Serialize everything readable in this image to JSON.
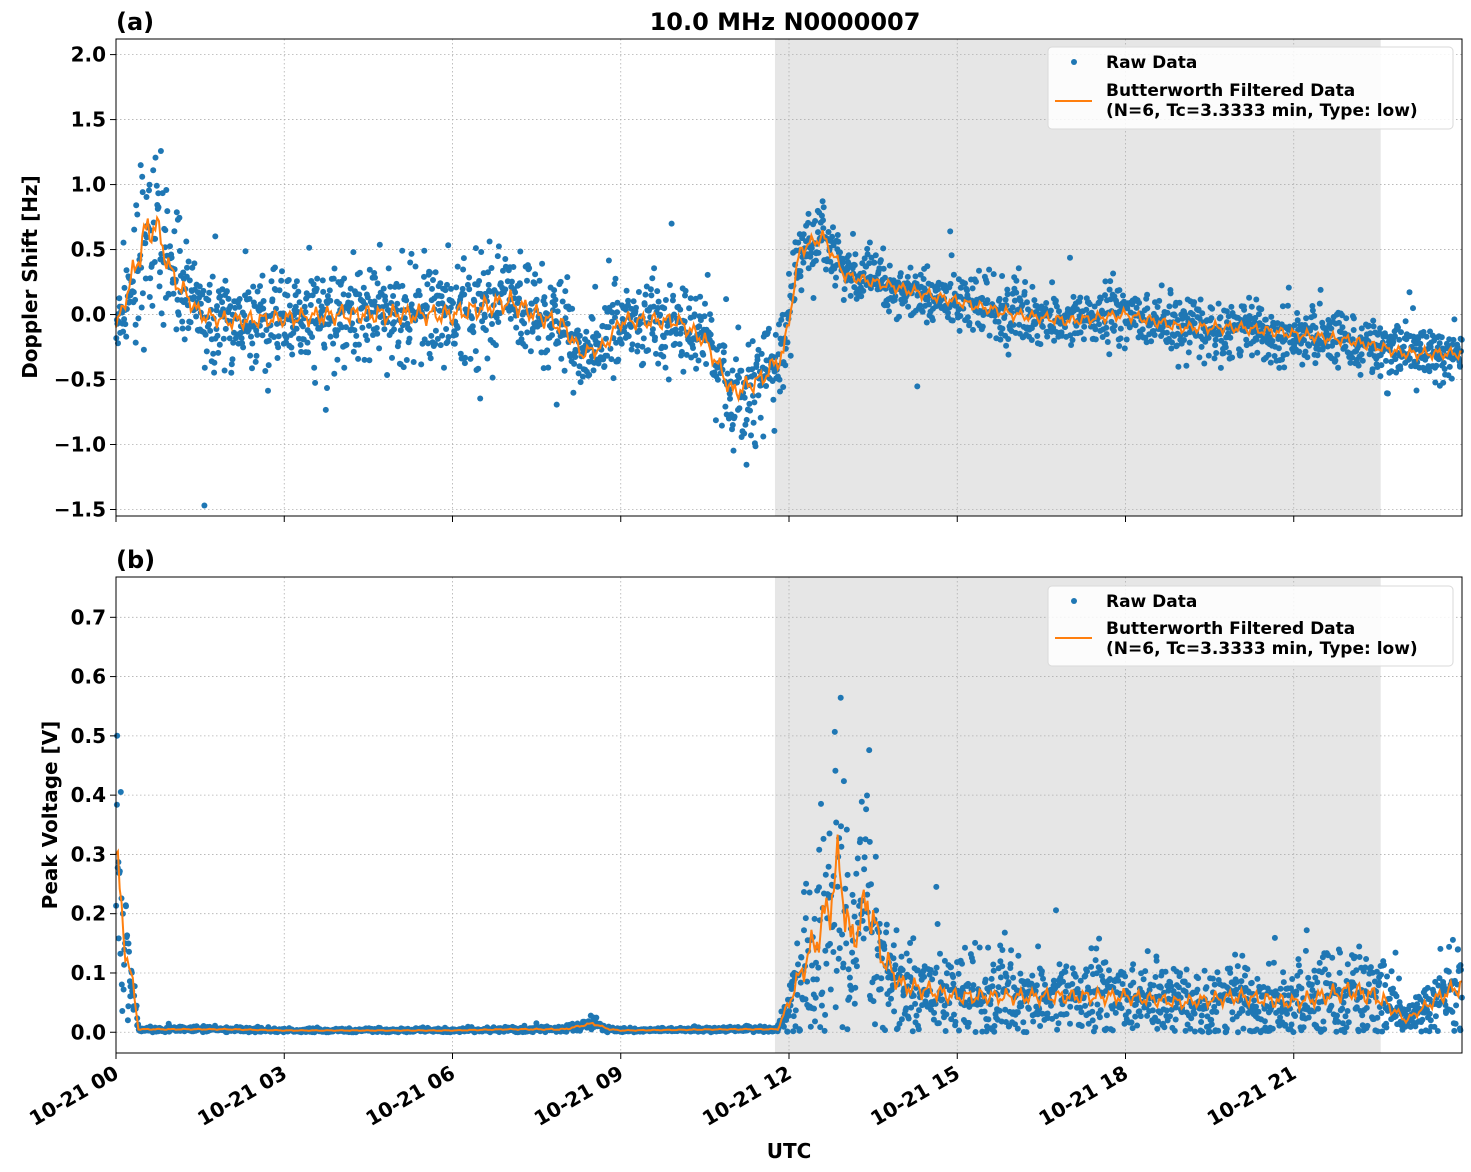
{
  "figure": {
    "title": "10.0 MHz N0000007",
    "xlabel": "UTC",
    "x_tick_labels": [
      "10-21 00",
      "10-21 03",
      "10-21 06",
      "10-21 09",
      "10-21 12",
      "10-21 15",
      "10-21 18",
      "10-21 21"
    ]
  },
  "chart_data": [
    {
      "panel": "(a)",
      "type": "scatter",
      "title": "10.0 MHz N0000007",
      "xlabel": "",
      "ylabel": "Doppler Shift [Hz]",
      "x_unit": "hours UTC from 10-21 00",
      "xlim": [
        0,
        24
      ],
      "ylim": [
        -1.55,
        2.12
      ],
      "y_ticks": [
        -1.5,
        -1.0,
        -0.5,
        0.0,
        0.5,
        1.0,
        1.5,
        2.0
      ],
      "y_tick_labels": [
        "−1.5",
        "−1.0",
        "−0.5",
        "0.0",
        "0.5",
        "1.0",
        "1.5",
        "2.0"
      ],
      "grid": true,
      "legend_position": "top-right",
      "shaded_interval": [
        11.75,
        22.55
      ],
      "shade_color": "#e6e6e6",
      "series": [
        {
          "name": "Raw Data",
          "kind": "points",
          "color": "#1f77b4",
          "x": [
            0,
            0.3,
            0.5,
            0.7,
            1,
            1.5,
            2,
            3,
            4,
            5,
            6,
            7,
            7.5,
            8,
            8.3,
            8.7,
            9,
            10,
            10.5,
            11,
            11.5,
            11.9,
            12.2,
            12.6,
            13,
            14,
            15,
            16,
            17,
            18,
            19,
            20,
            21,
            22,
            22.5,
            23,
            24
          ],
          "y_center": [
            -0.1,
            0.3,
            0.6,
            0.7,
            0.3,
            0.0,
            -0.05,
            -0.03,
            0.0,
            0.0,
            0.0,
            0.1,
            0.0,
            -0.1,
            -0.3,
            -0.25,
            -0.05,
            -0.05,
            -0.2,
            -0.6,
            -0.5,
            -0.3,
            0.5,
            0.6,
            0.3,
            0.2,
            0.1,
            0.0,
            -0.05,
            0.0,
            -0.1,
            -0.1,
            -0.15,
            -0.2,
            -0.25,
            -0.3,
            -0.3
          ],
          "y_spread": [
            0.15,
            0.5,
            0.7,
            0.6,
            0.4,
            0.3,
            0.3,
            0.3,
            0.35,
            0.35,
            0.35,
            0.4,
            0.35,
            0.35,
            0.25,
            0.25,
            0.3,
            0.3,
            0.3,
            0.35,
            0.35,
            0.35,
            0.25,
            0.25,
            0.2,
            0.2,
            0.2,
            0.2,
            0.2,
            0.2,
            0.2,
            0.2,
            0.2,
            0.2,
            0.2,
            0.2,
            0.2
          ]
        },
        {
          "name": "Butterworth Filtered Data\n(N=6, Tc=3.3333 min, Type: low)",
          "kind": "line",
          "color": "#ff7f0e",
          "x": [
            0,
            0.3,
            0.5,
            0.7,
            1,
            1.5,
            2,
            3,
            4,
            5,
            6,
            7,
            7.5,
            8,
            8.3,
            8.7,
            9,
            10,
            10.5,
            11,
            11.5,
            11.9,
            12.2,
            12.6,
            13,
            14,
            15,
            16,
            17,
            18,
            19,
            20,
            21,
            22,
            22.5,
            23,
            24
          ],
          "y": [
            -0.1,
            0.3,
            0.6,
            0.7,
            0.3,
            0.0,
            -0.05,
            -0.03,
            0.0,
            0.0,
            0.0,
            0.1,
            0.0,
            -0.1,
            -0.3,
            -0.25,
            -0.05,
            -0.05,
            -0.2,
            -0.6,
            -0.5,
            -0.3,
            0.5,
            0.6,
            0.3,
            0.2,
            0.1,
            0.0,
            -0.05,
            0.0,
            -0.1,
            -0.1,
            -0.15,
            -0.2,
            -0.25,
            -0.3,
            -0.3
          ]
        }
      ]
    },
    {
      "panel": "(b)",
      "type": "scatter",
      "title": "",
      "xlabel": "UTC",
      "ylabel": "Peak Voltage [V]",
      "x_unit": "hours UTC from 10-21 00",
      "xlim": [
        0,
        24
      ],
      "ylim": [
        -0.035,
        0.768
      ],
      "y_ticks": [
        0.0,
        0.1,
        0.2,
        0.3,
        0.4,
        0.5,
        0.6,
        0.7
      ],
      "y_tick_labels": [
        "0.0",
        "0.1",
        "0.2",
        "0.3",
        "0.4",
        "0.5",
        "0.6",
        "0.7"
      ],
      "grid": true,
      "legend_position": "top-right",
      "shaded_interval": [
        11.75,
        22.55
      ],
      "shade_color": "#e6e6e6",
      "series": [
        {
          "name": "Raw Data",
          "kind": "points",
          "color": "#1f77b4",
          "x": [
            0,
            0.05,
            0.15,
            0.3,
            0.4,
            1,
            2,
            3,
            6,
            7,
            8,
            8.5,
            8.8,
            9,
            11,
            11.8,
            12.3,
            12.6,
            12.9,
            13.1,
            13.4,
            13.7,
            14,
            15,
            16,
            17,
            18,
            19,
            20,
            21,
            22,
            22.5,
            23,
            23.6,
            24
          ],
          "y_center": [
            0.3,
            0.25,
            0.15,
            0.08,
            0.005,
            0.005,
            0.005,
            0.003,
            0.003,
            0.005,
            0.005,
            0.015,
            0.005,
            0.003,
            0.005,
            0.005,
            0.12,
            0.18,
            0.28,
            0.15,
            0.22,
            0.12,
            0.08,
            0.06,
            0.06,
            0.06,
            0.06,
            0.05,
            0.06,
            0.05,
            0.07,
            0.06,
            0.02,
            0.06,
            0.08
          ],
          "y_spread": [
            0.2,
            0.2,
            0.1,
            0.05,
            0.004,
            0.004,
            0.004,
            0.003,
            0.003,
            0.004,
            0.006,
            0.01,
            0.004,
            0.003,
            0.004,
            0.004,
            0.12,
            0.18,
            0.28,
            0.15,
            0.2,
            0.12,
            0.08,
            0.06,
            0.06,
            0.06,
            0.06,
            0.05,
            0.06,
            0.06,
            0.08,
            0.08,
            0.02,
            0.06,
            0.08
          ]
        },
        {
          "name": "Butterworth Filtered Data\n(N=6, Tc=3.3333 min, Type: low)",
          "kind": "line",
          "color": "#ff7f0e",
          "x": [
            0,
            0.05,
            0.15,
            0.3,
            0.4,
            1,
            2,
            3,
            6,
            7,
            8,
            8.5,
            8.8,
            9,
            11,
            11.8,
            12.3,
            12.6,
            12.9,
            13.1,
            13.4,
            13.7,
            14,
            15,
            16,
            17,
            18,
            19,
            20,
            21,
            22,
            22.5,
            23,
            23.6,
            24
          ],
          "y": [
            0.3,
            0.25,
            0.15,
            0.08,
            0.005,
            0.005,
            0.005,
            0.003,
            0.003,
            0.005,
            0.005,
            0.015,
            0.005,
            0.003,
            0.005,
            0.005,
            0.12,
            0.18,
            0.28,
            0.15,
            0.22,
            0.12,
            0.08,
            0.06,
            0.06,
            0.06,
            0.06,
            0.05,
            0.06,
            0.05,
            0.07,
            0.06,
            0.02,
            0.06,
            0.08
          ]
        }
      ]
    }
  ]
}
